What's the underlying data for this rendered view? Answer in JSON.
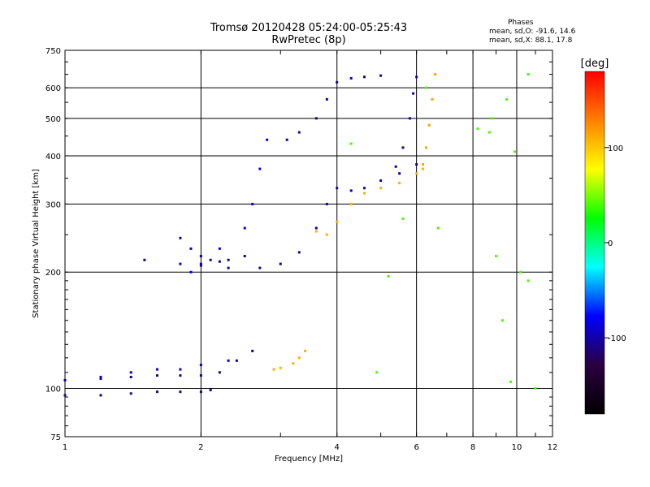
{
  "header": {
    "title": "Tromsø 20120428 05:24:00-05:25:43",
    "subtitle": "RwPretec (8p)"
  },
  "phases_note": {
    "heading": "Phases",
    "line_o": "mean, sd,O: -91.6, 14.6",
    "line_x": "mean, sd,X:  88.1, 17.8"
  },
  "chart_data": {
    "type": "scatter",
    "title": "Tromsø 20120428 05:24:00-05:25:43",
    "subtitle": "RwPretec (8p)",
    "xlabel": "Frequency [MHz]",
    "ylabel": "Stationary phase Virtual Height [km]",
    "xscale": "log",
    "yscale": "log",
    "xlim": [
      1,
      12
    ],
    "ylim": [
      75,
      750
    ],
    "xticks": [
      1,
      2,
      4,
      6,
      8,
      10,
      12
    ],
    "yticks": [
      75,
      100,
      200,
      300,
      400,
      500,
      600,
      750
    ],
    "grid": true,
    "colorbar": {
      "label": "[deg]",
      "min": -180,
      "max": 180,
      "ticks": [
        100,
        0,
        -100
      ],
      "colors": [
        "#000000",
        "#2b0040",
        "#0000ff",
        "#00ffff",
        "#00ff00",
        "#ffff00",
        "#ff8000",
        "#ff0000"
      ]
    },
    "series": [
      {
        "points": [
          [
            1.0,
            105
          ],
          [
            1.2,
            106
          ],
          [
            1.4,
            107
          ],
          [
            1.6,
            108
          ],
          [
            1.8,
            108
          ],
          [
            2.0,
            108
          ],
          [
            2.2,
            110
          ],
          [
            2.4,
            118
          ],
          [
            2.6,
            125
          ]
        ],
        "phase": -110
      },
      {
        "points": [
          [
            1.0,
            96
          ],
          [
            1.2,
            96
          ],
          [
            1.4,
            97
          ],
          [
            1.6,
            98
          ],
          [
            1.8,
            98
          ],
          [
            2.0,
            98
          ],
          [
            2.1,
            99
          ]
        ],
        "phase": -110
      },
      {
        "points": [
          [
            1.0,
            105
          ],
          [
            1.2,
            107
          ],
          [
            1.4,
            110
          ],
          [
            1.6,
            112
          ],
          [
            1.8,
            112
          ],
          [
            2.0,
            115
          ],
          [
            2.3,
            118
          ]
        ],
        "phase": -95
      },
      {
        "points": [
          [
            1.8,
            245
          ],
          [
            1.9,
            230
          ],
          [
            2.0,
            220
          ],
          [
            2.1,
            215
          ],
          [
            2.2,
            213
          ],
          [
            2.3,
            215
          ],
          [
            2.5,
            220
          ]
        ],
        "phase": -110
      },
      {
        "points": [
          [
            1.9,
            200
          ],
          [
            2.0,
            210
          ],
          [
            2.2,
            230
          ],
          [
            2.5,
            260
          ],
          [
            2.6,
            300
          ],
          [
            2.7,
            370
          ],
          [
            2.8,
            440
          ]
        ],
        "phase": -80
      },
      {
        "points": [
          [
            1.5,
            215
          ],
          [
            1.8,
            210
          ],
          [
            2.0,
            208
          ],
          [
            2.3,
            205
          ],
          [
            2.7,
            205
          ]
        ],
        "phase": -105
      },
      {
        "points": [
          [
            3.0,
            210
          ],
          [
            3.3,
            225
          ],
          [
            3.6,
            260
          ],
          [
            3.8,
            300
          ],
          [
            4.0,
            330
          ],
          [
            4.3,
            325
          ],
          [
            4.6,
            330
          ],
          [
            5.0,
            345
          ],
          [
            5.5,
            360
          ],
          [
            6.0,
            380
          ]
        ],
        "phase": -105
      },
      {
        "points": [
          [
            3.1,
            440
          ],
          [
            3.3,
            460
          ],
          [
            3.6,
            500
          ],
          [
            3.8,
            560
          ],
          [
            4.0,
            620
          ],
          [
            4.3,
            635
          ],
          [
            4.6,
            640
          ],
          [
            5.0,
            645
          ]
        ],
        "phase": -105
      },
      {
        "points": [
          [
            5.4,
            375
          ],
          [
            5.6,
            420
          ],
          [
            5.8,
            500
          ],
          [
            5.9,
            580
          ],
          [
            6.0,
            640
          ]
        ],
        "phase": -100
      },
      {
        "points": [
          [
            3.6,
            255
          ],
          [
            3.8,
            250
          ],
          [
            4.0,
            270
          ],
          [
            4.3,
            300
          ],
          [
            4.6,
            320
          ],
          [
            5.0,
            330
          ],
          [
            5.5,
            340
          ],
          [
            6.0,
            360
          ],
          [
            6.2,
            370
          ]
        ],
        "phase": 110
      },
      {
        "points": [
          [
            6.2,
            380
          ],
          [
            6.3,
            420
          ],
          [
            6.4,
            480
          ],
          [
            6.5,
            560
          ],
          [
            6.6,
            650
          ]
        ],
        "phase": 115
      },
      {
        "points": [
          [
            2.9,
            112
          ],
          [
            3.0,
            113
          ],
          [
            3.2,
            116
          ],
          [
            3.3,
            120
          ],
          [
            3.4,
            125
          ]
        ],
        "phase": 110
      },
      {
        "points": [
          [
            4.3,
            430
          ],
          [
            8.8,
            500
          ],
          [
            9.5,
            560
          ],
          [
            10.6,
            650
          ],
          [
            10.6,
            190
          ],
          [
            10.2,
            200
          ],
          [
            9.0,
            220
          ],
          [
            4.9,
            110
          ],
          [
            9.7,
            104
          ],
          [
            6.3,
            600
          ],
          [
            8.2,
            470
          ],
          [
            8.7,
            460
          ],
          [
            9.9,
            410
          ],
          [
            6.7,
            260
          ],
          [
            5.2,
            195
          ],
          [
            9.3,
            150
          ],
          [
            11.0,
            100
          ],
          [
            5.6,
            275
          ]
        ],
        "phase": 40
      }
    ]
  }
}
